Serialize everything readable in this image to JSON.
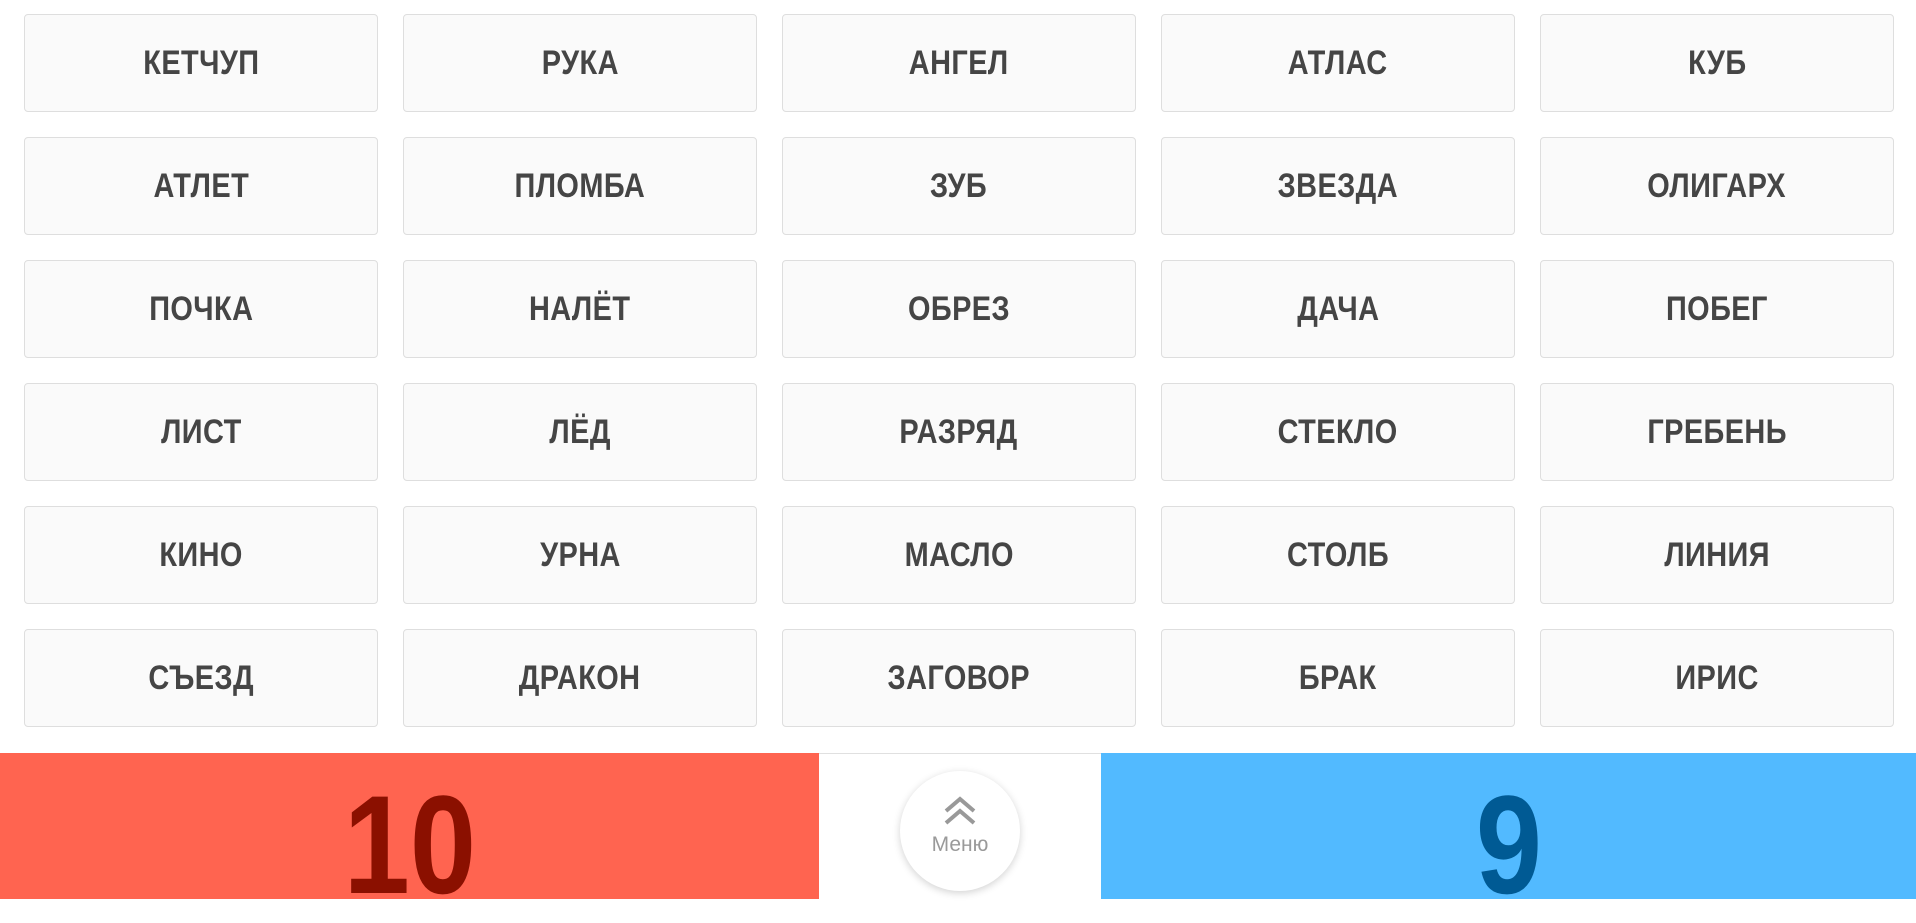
{
  "words": [
    "КЕТЧУП",
    "РУКА",
    "АНГЕЛ",
    "АТЛАС",
    "КУБ",
    "АТЛЕТ",
    "ПЛОМБА",
    "ЗУБ",
    "ЗВЕЗДА",
    "ОЛИГАРХ",
    "ПОЧКА",
    "НАЛЁТ",
    "ОБРЕЗ",
    "ДАЧА",
    "ПОБЕГ",
    "ЛИСТ",
    "ЛЁД",
    "РАЗРЯД",
    "СТЕКЛО",
    "ГРЕБЕНЬ",
    "КИНО",
    "УРНА",
    "МАСЛО",
    "СТОЛБ",
    "ЛИНИЯ",
    "СЪЕЗД",
    "ДРАКОН",
    "ЗАГОВОР",
    "БРАК",
    "ИРИС"
  ],
  "scores": {
    "red": "10",
    "blue": "9",
    "red_color": "#ff6450",
    "blue_color": "#52baff"
  },
  "menu": {
    "label": "Меню",
    "icon": "double-chevron-up-icon"
  }
}
